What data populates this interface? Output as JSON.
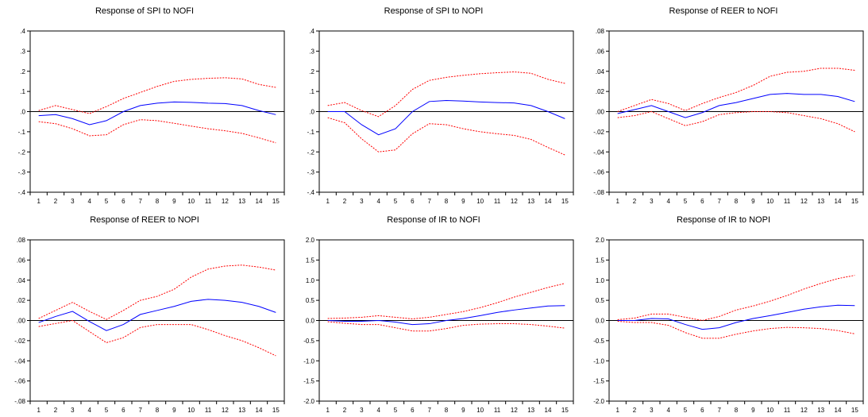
{
  "colors": {
    "response": "#0000ff",
    "band": "#ff0000",
    "axis": "#000000",
    "frame": "#000000"
  },
  "chart_data": [
    {
      "type": "line",
      "title": "Response of SPI to NOFI",
      "x": [
        1,
        2,
        3,
        4,
        5,
        6,
        7,
        8,
        9,
        10,
        11,
        12,
        13,
        14,
        15
      ],
      "ylim": [
        -0.4,
        0.4
      ],
      "yticks": [
        ".4",
        ".3",
        ".2",
        ".1",
        ".0",
        "-.1",
        "-.2",
        "-.3",
        "-.4"
      ],
      "ytick_values": [
        0.4,
        0.3,
        0.2,
        0.1,
        0,
        -0.1,
        -0.2,
        -0.3,
        -0.4
      ],
      "series": [
        {
          "values": [
            -0.02,
            -0.015,
            -0.035,
            -0.065,
            -0.045,
            0.0,
            0.03,
            0.042,
            0.048,
            0.046,
            0.042,
            0.04,
            0.03,
            0.005,
            -0.015
          ]
        },
        {
          "values": [
            0.005,
            0.03,
            0.01,
            -0.01,
            0.025,
            0.065,
            0.095,
            0.125,
            0.15,
            0.16,
            0.165,
            0.168,
            0.162,
            0.135,
            0.12
          ]
        },
        {
          "values": [
            -0.05,
            -0.06,
            -0.085,
            -0.12,
            -0.115,
            -0.065,
            -0.04,
            -0.045,
            -0.058,
            -0.072,
            -0.085,
            -0.095,
            -0.108,
            -0.13,
            -0.155
          ]
        }
      ]
    },
    {
      "type": "line",
      "title": "Response of SPI to NOPI",
      "x": [
        1,
        2,
        3,
        4,
        5,
        6,
        7,
        8,
        9,
        10,
        11,
        12,
        13,
        14,
        15
      ],
      "ylim": [
        -0.4,
        0.4
      ],
      "yticks": [
        ".4",
        ".3",
        ".2",
        ".1",
        ".0",
        "-.1",
        "-.2",
        "-.3",
        "-.4"
      ],
      "ytick_values": [
        0.4,
        0.3,
        0.2,
        0.1,
        0,
        -0.1,
        -0.2,
        -0.3,
        -0.4
      ],
      "series": [
        {
          "values": [
            0.0,
            0.0,
            -0.065,
            -0.115,
            -0.085,
            0.0,
            0.05,
            0.055,
            0.052,
            0.048,
            0.045,
            0.043,
            0.03,
            0.0,
            -0.035
          ]
        },
        {
          "values": [
            0.03,
            0.045,
            0.005,
            -0.025,
            0.03,
            0.11,
            0.155,
            0.17,
            0.18,
            0.188,
            0.193,
            0.197,
            0.19,
            0.16,
            0.14
          ]
        },
        {
          "values": [
            -0.03,
            -0.055,
            -0.135,
            -0.2,
            -0.19,
            -0.11,
            -0.06,
            -0.065,
            -0.085,
            -0.1,
            -0.11,
            -0.118,
            -0.138,
            -0.178,
            -0.215
          ]
        }
      ]
    },
    {
      "type": "line",
      "title": "Response of REER to NOFI",
      "x": [
        1,
        2,
        3,
        4,
        5,
        6,
        7,
        8,
        9,
        10,
        11,
        12,
        13,
        14,
        15
      ],
      "ylim": [
        -0.08,
        0.08
      ],
      "yticks": [
        ".08",
        ".06",
        ".04",
        ".02",
        ".00",
        "-.02",
        "-.04",
        "-.06",
        "-.08"
      ],
      "ytick_values": [
        0.08,
        0.06,
        0.04,
        0.02,
        0,
        -0.02,
        -0.04,
        -0.06,
        -0.08
      ],
      "series": [
        {
          "values": [
            -0.002,
            0.002,
            0.006,
            0.0,
            -0.006,
            -0.001,
            0.006,
            0.009,
            0.013,
            0.017,
            0.018,
            0.017,
            0.017,
            0.015,
            0.01
          ]
        },
        {
          "values": [
            0.0,
            0.006,
            0.012,
            0.008,
            0.001,
            0.008,
            0.014,
            0.019,
            0.026,
            0.035,
            0.039,
            0.04,
            0.043,
            0.043,
            0.041
          ]
        },
        {
          "values": [
            -0.006,
            -0.004,
            0.0,
            -0.007,
            -0.014,
            -0.01,
            -0.003,
            -0.001,
            0.0,
            0.0,
            -0.001,
            -0.004,
            -0.007,
            -0.012,
            -0.02
          ]
        }
      ]
    },
    {
      "type": "line",
      "title": "Response of REER to NOPI",
      "x": [
        1,
        2,
        3,
        4,
        5,
        6,
        7,
        8,
        9,
        10,
        11,
        12,
        13,
        14,
        15
      ],
      "ylim": [
        -0.08,
        0.08
      ],
      "yticks": [
        ".08",
        ".06",
        ".04",
        ".02",
        ".00",
        "-.02",
        "-.04",
        "-.06",
        "-.08"
      ],
      "ytick_values": [
        0.08,
        0.06,
        0.04,
        0.02,
        0,
        -0.02,
        -0.04,
        -0.06,
        -0.08
      ],
      "series": [
        {
          "values": [
            -0.002,
            0.004,
            0.009,
            -0.001,
            -0.01,
            -0.004,
            0.006,
            0.01,
            0.014,
            0.019,
            0.021,
            0.02,
            0.018,
            0.014,
            0.008
          ]
        },
        {
          "values": [
            0.002,
            0.01,
            0.018,
            0.009,
            0.001,
            0.01,
            0.02,
            0.024,
            0.031,
            0.043,
            0.051,
            0.054,
            0.055,
            0.053,
            0.05
          ]
        },
        {
          "values": [
            -0.006,
            -0.003,
            0.0,
            -0.011,
            -0.022,
            -0.017,
            -0.007,
            -0.004,
            -0.004,
            -0.004,
            -0.009,
            -0.015,
            -0.02,
            -0.027,
            -0.035
          ]
        }
      ]
    },
    {
      "type": "line",
      "title": "Response of IR to NOFI",
      "x": [
        1,
        2,
        3,
        4,
        5,
        6,
        7,
        8,
        9,
        10,
        11,
        12,
        13,
        14,
        15
      ],
      "ylim": [
        -2.0,
        2.0
      ],
      "yticks": [
        "2.0",
        "1.5",
        "1.0",
        "0.5",
        "0.0",
        "-0.5",
        "-1.0",
        "-1.5",
        "-2.0"
      ],
      "ytick_values": [
        2.0,
        1.5,
        1.0,
        0.5,
        0,
        -0.5,
        -1.0,
        -1.5,
        -2.0
      ],
      "series": [
        {
          "values": [
            0.0,
            -0.02,
            -0.02,
            0.0,
            -0.04,
            -0.1,
            -0.08,
            0.0,
            0.05,
            0.12,
            0.2,
            0.26,
            0.31,
            0.36,
            0.37
          ]
        },
        {
          "values": [
            0.05,
            0.06,
            0.08,
            0.12,
            0.08,
            0.04,
            0.08,
            0.15,
            0.22,
            0.32,
            0.44,
            0.58,
            0.7,
            0.82,
            0.92
          ]
        },
        {
          "values": [
            -0.03,
            -0.07,
            -0.1,
            -0.1,
            -0.18,
            -0.26,
            -0.26,
            -0.2,
            -0.12,
            -0.09,
            -0.08,
            -0.08,
            -0.1,
            -0.14,
            -0.19
          ]
        }
      ]
    },
    {
      "type": "line",
      "title": "Response of IR to NOPI",
      "x": [
        1,
        2,
        3,
        4,
        5,
        6,
        7,
        8,
        9,
        10,
        11,
        12,
        13,
        14,
        15
      ],
      "ylim": [
        -2.0,
        2.0
      ],
      "yticks": [
        "2.0",
        "1.5",
        "1.0",
        "0.5",
        "0.0",
        "-0.5",
        "-1.0",
        "-1.5",
        "-2.0"
      ],
      "ytick_values": [
        2.0,
        1.5,
        1.0,
        0.5,
        0,
        -0.5,
        -1.0,
        -1.5,
        -2.0
      ],
      "series": [
        {
          "values": [
            0.0,
            0.0,
            0.05,
            0.04,
            -0.1,
            -0.22,
            -0.18,
            -0.05,
            0.05,
            0.12,
            0.2,
            0.28,
            0.34,
            0.38,
            0.37
          ]
        },
        {
          "values": [
            0.02,
            0.06,
            0.16,
            0.16,
            0.08,
            0.0,
            0.1,
            0.26,
            0.36,
            0.48,
            0.62,
            0.78,
            0.92,
            1.04,
            1.12
          ]
        },
        {
          "values": [
            -0.02,
            -0.05,
            -0.05,
            -0.12,
            -0.3,
            -0.44,
            -0.44,
            -0.34,
            -0.26,
            -0.2,
            -0.17,
            -0.18,
            -0.2,
            -0.25,
            -0.33
          ]
        }
      ]
    }
  ]
}
